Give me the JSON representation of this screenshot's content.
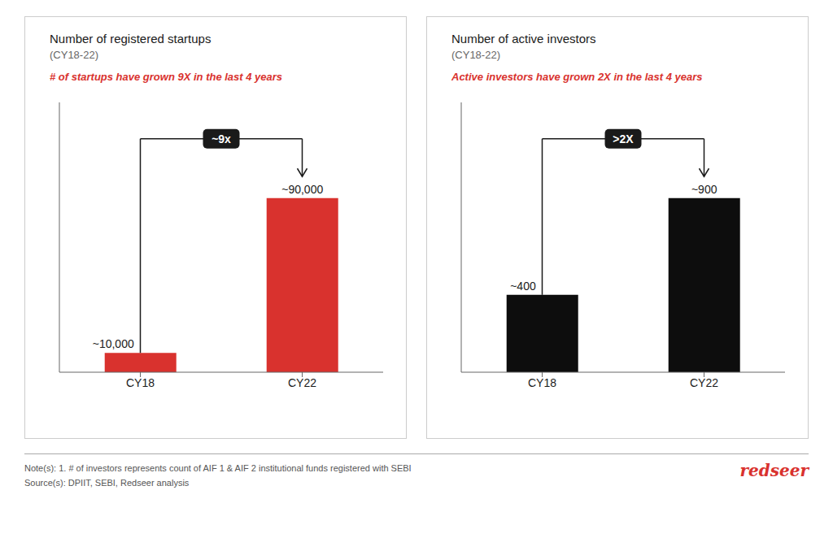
{
  "chart_data": [
    {
      "type": "bar",
      "title": "Number of registered startups",
      "subtitle": "(CY18-22)",
      "annotations": [
        {
          "text": "# of startups have grown 9X in the last 4 years",
          "color": "#d9322e"
        },
        {
          "text": "~9x"
        }
      ],
      "categories": [
        "CY18",
        "CY22"
      ],
      "values": [
        10000,
        90000
      ],
      "value_labels": [
        "~10,000",
        "~90,000"
      ],
      "data_labels": true,
      "color": "#d9322e",
      "ylim": [
        0,
        139500
      ],
      "tick_labels": "x",
      "grid": false
    },
    {
      "type": "bar",
      "title": "Number of active investors",
      "subtitle": "(CY18-22)",
      "annotations": [
        {
          "text": "Active investors have grown 2X in the last 4 years",
          "color": "#d9322e"
        },
        {
          "text": ">2X"
        }
      ],
      "categories": [
        "CY18",
        "CY22"
      ],
      "values": [
        400,
        900
      ],
      "value_labels": [
        "~400",
        "~900"
      ],
      "data_labels": true,
      "color": "#0d0d0d",
      "ylim": [
        0,
        1395
      ],
      "tick_labels": "x",
      "grid": false
    }
  ],
  "annotations": [
    {
      "text": "Note(s): 1. # of investors represents count of AIF 1 & AIF 2 institutional funds registered with SEBI"
    },
    {
      "text": "Source(s): DPIIT, SEBI, Redseer analysis"
    },
    {
      "text": "redseer",
      "color": "#d9322e"
    }
  ]
}
